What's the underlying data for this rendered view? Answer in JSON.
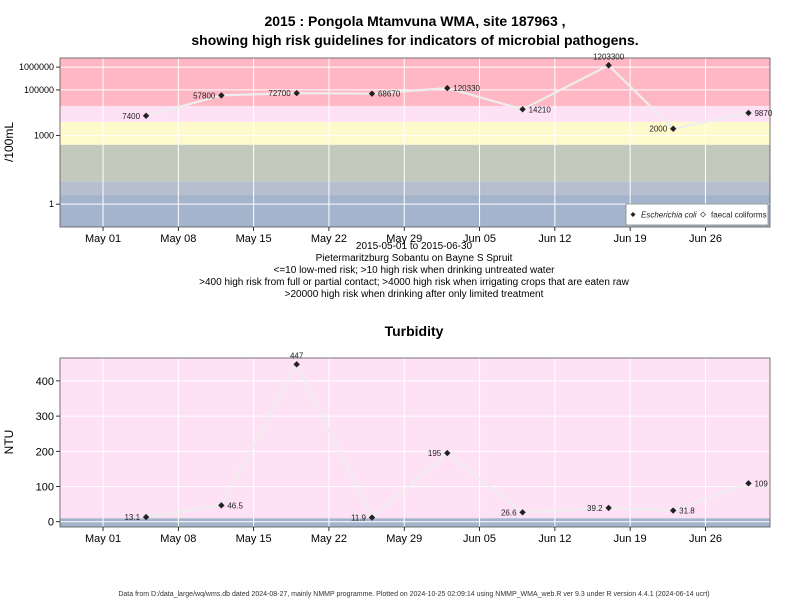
{
  "chart_data": [
    {
      "type": "line",
      "title_line1": "2015 : Pongola Mtamvuna WMA, site 187963 ,",
      "title_line2": "showing high risk guidelines for indicators of microbial pathogens.",
      "ylabel": "/100mL",
      "y_scale": "log",
      "ylim": [
        0.1,
        2500000
      ],
      "y_ticks": [
        1,
        1000,
        100000,
        1000000
      ],
      "y_tick_labels": [
        "1",
        "1000",
        "100000",
        "1000000"
      ],
      "xlim": [
        "2015-04-27",
        "2015-07-02"
      ],
      "x_ticks": [
        "2015-05-01",
        "2015-05-08",
        "2015-05-15",
        "2015-05-22",
        "2015-05-29",
        "2015-06-05",
        "2015-06-12",
        "2015-06-19",
        "2015-06-26"
      ],
      "x_tick_labels": [
        "May 01",
        "May 08",
        "May 15",
        "May 22",
        "May 29",
        "Jun 05",
        "Jun 12",
        "Jun 19",
        "Jun 26"
      ],
      "bands": [
        {
          "from": 0.1,
          "to": 2.5,
          "color": "#a4b4cc"
        },
        {
          "from": 2.5,
          "to": 10,
          "color": "#b7bfcf"
        },
        {
          "from": 10,
          "to": 400,
          "color": "#c3c9bd"
        },
        {
          "from": 400,
          "to": 4000,
          "color": "#fffacc"
        },
        {
          "from": 4000,
          "to": 20000,
          "color": "#fee1f5"
        },
        {
          "from": 20000,
          "to": 2500000,
          "color": "#ffb7c3"
        }
      ],
      "series": [
        {
          "name": "Escherichia coli",
          "points": [
            {
              "x": "2015-05-05",
              "y": 7400,
              "label": "7400"
            },
            {
              "x": "2015-05-12",
              "y": 57800,
              "label": "57800"
            },
            {
              "x": "2015-05-19",
              "y": 72700,
              "label": "72700"
            },
            {
              "x": "2015-05-26",
              "y": 68670,
              "label": "68670"
            },
            {
              "x": "2015-06-02",
              "y": 120330,
              "label": "120330"
            },
            {
              "x": "2015-06-09",
              "y": 14210,
              "label": "14210"
            },
            {
              "x": "2015-06-17",
              "y": 1203300,
              "label": "1203300"
            },
            {
              "x": "2015-06-23",
              "y": 2000,
              "label": "2000"
            },
            {
              "x": "2015-06-30",
              "y": 9870,
              "label": "9870"
            }
          ]
        }
      ],
      "legend": {
        "placement": "bottom-right",
        "entries": [
          {
            "label": "Escherichia coli",
            "italic": true
          },
          {
            "label": "faecal coliforms",
            "italic": false
          }
        ]
      },
      "caption_lines": [
        "2015-05-01 to 2015-06-30",
        "Pietermaritzburg Sobantu on Bayne S Spruit",
        "<=10 low-med risk; >10 high risk when drinking untreated water",
        ">400 high risk from full or partial contact; >4000 high risk when irrigating crops that are eaten raw",
        ">20000 high risk when drinking after only limited treatment"
      ]
    },
    {
      "type": "line",
      "title": "Turbidity",
      "ylabel": "NTU",
      "y_scale": "linear",
      "ylim": [
        -15,
        465
      ],
      "y_ticks": [
        0,
        100,
        200,
        300,
        400
      ],
      "y_tick_labels": [
        "0",
        "100",
        "200",
        "300",
        "400"
      ],
      "xlim": [
        "2015-04-27",
        "2015-07-02"
      ],
      "x_ticks": [
        "2015-05-01",
        "2015-05-08",
        "2015-05-15",
        "2015-05-22",
        "2015-05-29",
        "2015-06-05",
        "2015-06-12",
        "2015-06-19",
        "2015-06-26"
      ],
      "x_tick_labels": [
        "May 01",
        "May 08",
        "May 15",
        "May 22",
        "May 29",
        "Jun 05",
        "Jun 12",
        "Jun 19",
        "Jun 26"
      ],
      "bands": [
        {
          "from": -15,
          "to": 0,
          "color": "#a4b4cc"
        },
        {
          "from": 0,
          "to": 10,
          "color": "#a4b4cc"
        },
        {
          "from": 10,
          "to": 465,
          "color": "#fee1f5"
        }
      ],
      "series": [
        {
          "points": [
            {
              "x": "2015-05-05",
              "y": 13.1,
              "label": "13.1"
            },
            {
              "x": "2015-05-12",
              "y": 46.5,
              "label": "46.5"
            },
            {
              "x": "2015-05-19",
              "y": 447,
              "label": "447"
            },
            {
              "x": "2015-05-26",
              "y": 11.9,
              "label": "11.9"
            },
            {
              "x": "2015-06-02",
              "y": 195,
              "label": "195"
            },
            {
              "x": "2015-06-09",
              "y": 26.6,
              "label": "26.6"
            },
            {
              "x": "2015-06-17",
              "y": 39.2,
              "label": "39.2"
            },
            {
              "x": "2015-06-23",
              "y": 31.8,
              "label": "31.8"
            },
            {
              "x": "2015-06-30",
              "y": 109,
              "label": "109"
            }
          ]
        }
      ]
    }
  ],
  "footer": "Data from D:/data_large/wq/wms.db dated 2024-08-27, mainly NMMP programme. Plotted on 2024-10-25 02:09:14 using NMMP_WMA_web.R ver 9.3 under R version 4.4.1 (2024-06-14 ucrt)"
}
